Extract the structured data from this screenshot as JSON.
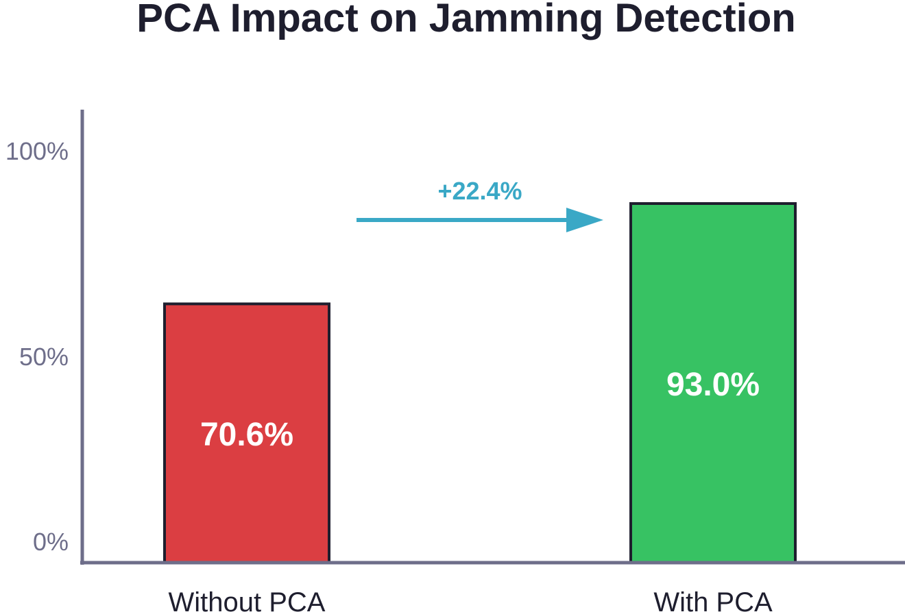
{
  "chart_data": {
    "type": "bar",
    "title": "PCA Impact on Jamming Detection",
    "xlabel": "",
    "ylabel": "",
    "categories": [
      "Without PCA",
      "With PCA"
    ],
    "values": [
      70.6,
      93.0
    ],
    "value_labels": [
      "70.6%",
      "93.0%"
    ],
    "bar_colors": [
      "#db3e42",
      "#37c263"
    ],
    "ylim": [
      0,
      100
    ],
    "y_ticks": [
      0,
      50,
      100
    ],
    "y_tick_labels": [
      "0%",
      "50%",
      "100%"
    ],
    "grid": false,
    "annotation": {
      "text": "+22.4%",
      "shape": "arrow-right",
      "color": "#3aa8c6"
    }
  }
}
